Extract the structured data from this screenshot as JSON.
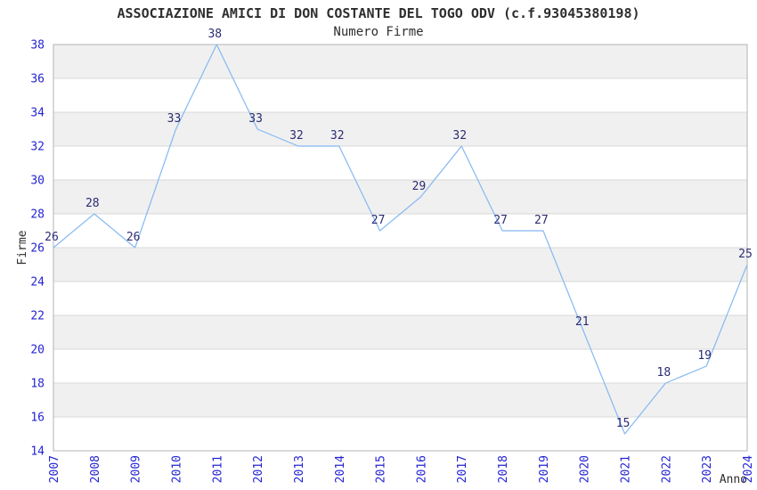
{
  "chart_data": {
    "type": "line",
    "title": "ASSOCIAZIONE AMICI DI DON COSTANTE DEL TOGO ODV (c.f.93045380198)",
    "subtitle": "Numero Firme",
    "xlabel": "Anno",
    "ylabel": "Firme",
    "categories": [
      "2007",
      "2008",
      "2009",
      "2010",
      "2011",
      "2012",
      "2013",
      "2014",
      "2015",
      "2016",
      "2017",
      "2018",
      "2019",
      "2020",
      "2021",
      "2022",
      "2023",
      "2024"
    ],
    "values": [
      26,
      28,
      26,
      33,
      38,
      33,
      32,
      32,
      27,
      29,
      32,
      27,
      27,
      21,
      15,
      18,
      19,
      25
    ],
    "ylim": [
      14,
      38
    ],
    "ytick_step": 2,
    "xtick_rotation": -90,
    "grid": "horizontal",
    "bands": "alternating 2-unit horizontal stripes, gray on 16-18, 20-22, 24-26, 28-30, 32-34, 36-38",
    "legend": "none",
    "point_labels": true,
    "colors": {
      "background": "#ffffff",
      "line": "#85b8f2",
      "tick_label": "#2424d2",
      "point_label": "#2b2b73",
      "band": "#f0f0f0",
      "grid": "#d9d9d9",
      "border": "#b3b3b3",
      "text": "#2e2e2e"
    }
  }
}
